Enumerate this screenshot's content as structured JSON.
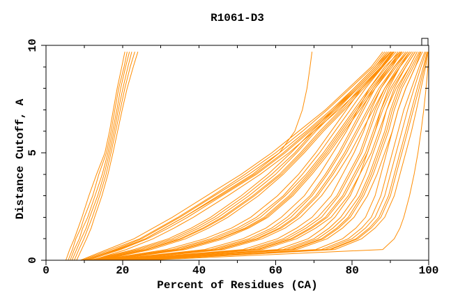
{
  "chart_data": {
    "type": "line",
    "title": "R1061-D3",
    "xlabel": "Percent of Residues (CA)",
    "ylabel": "Distance Cutoff, A",
    "xlim": [
      0,
      100
    ],
    "ylim": [
      0,
      10
    ],
    "grid": false,
    "legend": "none",
    "line_color": "#ff8c00",
    "frame_color": "#000000",
    "x_major_ticks": [
      0,
      20,
      40,
      60,
      80,
      100
    ],
    "x_minor_ticks": [
      10,
      30,
      50,
      70,
      90
    ],
    "y_major_ticks": [
      0,
      5,
      10
    ],
    "y_minor_ticks": [
      1,
      2,
      3,
      4,
      6,
      7,
      8,
      9
    ],
    "x_tick_labels": [
      "0",
      "20",
      "40",
      "60",
      "80",
      "100"
    ],
    "y_tick_labels": [
      "0",
      "5",
      "10"
    ],
    "cutoffs": [
      0,
      0.5,
      1,
      1.5,
      2,
      3,
      4,
      5,
      6,
      7,
      8,
      9,
      9.7
    ],
    "series": [
      [
        5.2,
        6.2,
        7.4,
        8.4,
        9.4,
        11.2,
        13.2,
        15.4,
        16.6,
        17.6,
        18.6,
        19.8,
        20.6
      ],
      [
        5.8,
        6.9,
        7.8,
        9.1,
        10.0,
        12.2,
        13.8,
        15.8,
        17.0,
        18.0,
        19.0,
        20.4,
        21.2
      ],
      [
        6.3,
        7.4,
        8.7,
        9.6,
        10.9,
        12.8,
        14.7,
        16.2,
        17.4,
        18.5,
        19.5,
        20.8,
        21.8
      ],
      [
        6.8,
        8.0,
        9.2,
        10.5,
        11.4,
        13.5,
        15.2,
        16.6,
        17.8,
        18.9,
        20.1,
        21.4,
        22.4
      ],
      [
        7.4,
        8.6,
        9.9,
        11.0,
        12.1,
        14.0,
        15.7,
        17.0,
        18.2,
        19.4,
        20.6,
        22.0,
        23.2
      ],
      [
        8.0,
        9.3,
        10.6,
        11.8,
        12.7,
        14.6,
        16.2,
        17.5,
        18.7,
        19.9,
        21.2,
        22.8,
        24.0
      ],
      [
        10,
        19,
        26,
        31,
        36,
        45,
        54,
        61,
        65,
        67,
        68.2,
        69.0,
        69.5
      ],
      [
        9,
        16,
        23,
        28,
        33,
        42,
        51,
        59,
        66,
        73,
        79,
        85,
        88
      ],
      [
        10,
        18,
        25,
        30,
        35,
        44,
        53,
        61,
        68,
        74.5,
        80.5,
        86,
        89
      ],
      [
        11,
        19.5,
        26.5,
        32,
        37,
        46,
        55,
        62.5,
        69,
        75.5,
        81.5,
        87,
        90
      ],
      [
        9.5,
        17,
        24.5,
        29.5,
        34.5,
        43.5,
        52,
        60,
        67,
        73.5,
        79.5,
        85.5,
        88.5
      ],
      [
        12,
        21,
        28,
        33.5,
        38.5,
        47.5,
        56,
        63.5,
        70,
        76.5,
        82.5,
        88,
        90.5
      ],
      [
        10.5,
        18.5,
        26,
        31,
        36,
        45.5,
        54.5,
        62,
        68.5,
        75,
        81,
        86.5,
        89.5
      ],
      [
        12,
        24,
        33,
        39,
        44,
        52,
        59,
        65,
        70,
        75.5,
        81,
        86.5,
        90
      ],
      [
        13,
        26,
        35,
        41,
        46,
        54,
        61,
        66.5,
        71.5,
        77,
        82,
        87.5,
        90.5
      ],
      [
        11.5,
        23,
        32,
        38,
        43,
        51,
        58,
        64,
        69.5,
        75,
        80.5,
        86,
        89.5
      ],
      [
        14,
        27.5,
        36.5,
        42.5,
        47.5,
        55.5,
        62,
        67.5,
        72.5,
        78,
        83,
        88,
        91
      ],
      [
        12.5,
        25,
        34,
        40,
        45,
        53,
        60,
        65.5,
        70.5,
        76,
        81.5,
        87,
        90.2
      ],
      [
        13.5,
        26.5,
        35.5,
        41.5,
        46.5,
        54.5,
        61.5,
        67,
        72,
        77.5,
        82.5,
        87.8,
        90.8
      ],
      [
        14,
        33,
        43,
        50,
        55,
        62,
        67,
        71.5,
        75.5,
        79.5,
        83.5,
        88,
        91.5
      ],
      [
        15,
        35,
        45,
        52,
        57,
        63.5,
        68.5,
        73,
        77,
        81,
        85,
        89.5,
        92.5
      ],
      [
        13.5,
        31.5,
        41.5,
        48.5,
        53.5,
        60.5,
        66,
        70.5,
        74.5,
        78.5,
        82.5,
        87.5,
        91
      ],
      [
        16,
        36.5,
        46.5,
        53,
        58,
        64.5,
        69.5,
        74,
        78,
        82,
        86,
        90.5,
        93
      ],
      [
        14.5,
        34,
        44,
        51,
        56,
        62.5,
        68,
        72.5,
        76.5,
        80.5,
        84.5,
        89,
        92
      ],
      [
        15.5,
        35.5,
        45.5,
        52.5,
        57.5,
        64,
        69,
        73.5,
        77.5,
        81.5,
        85.5,
        90,
        92.8
      ],
      [
        16,
        43,
        53,
        59,
        63,
        69,
        73,
        76.5,
        79.5,
        82.5,
        85.5,
        89.5,
        93
      ],
      [
        17,
        45,
        55,
        61,
        65,
        70.5,
        74.5,
        78,
        81,
        84,
        87,
        91,
        94
      ],
      [
        15.5,
        41.5,
        51.5,
        57.5,
        61.5,
        67.5,
        71.5,
        75,
        78.5,
        81.5,
        84.5,
        88.5,
        92.5
      ],
      [
        18,
        46.5,
        56.5,
        62.5,
        66.5,
        72,
        76,
        79.5,
        82.5,
        85.5,
        88.5,
        92.5,
        95
      ],
      [
        16.5,
        44,
        54,
        60,
        64,
        69.5,
        73.5,
        77,
        80,
        83,
        86,
        90,
        93.5
      ],
      [
        17.5,
        45.5,
        55.5,
        61.5,
        65.5,
        71,
        75,
        78.5,
        81.5,
        84.5,
        87.5,
        91.5,
        94.5
      ],
      [
        18,
        53,
        62,
        67,
        71,
        76,
        79,
        82,
        84,
        86,
        88.5,
        92,
        95
      ],
      [
        19,
        55,
        64,
        69,
        73,
        77.5,
        80.5,
        83.5,
        85.5,
        87.5,
        90,
        93.5,
        96
      ],
      [
        17.5,
        51.5,
        60.5,
        65.5,
        69.5,
        74.5,
        77.5,
        80.5,
        83,
        85,
        87.5,
        91,
        94.5
      ],
      [
        20,
        56.5,
        65.5,
        70.5,
        74.5,
        79,
        82,
        85,
        87,
        89,
        91.5,
        95,
        97
      ],
      [
        18.5,
        54,
        63,
        68,
        72,
        76.5,
        79.5,
        82.5,
        84.5,
        86.5,
        89,
        92.5,
        95.5
      ],
      [
        19.5,
        55.5,
        64.5,
        69.5,
        73.5,
        78,
        81,
        84,
        86,
        88,
        90.5,
        94,
        96.5
      ],
      [
        20,
        62,
        70,
        74,
        77,
        81,
        83.5,
        85.5,
        87.5,
        89,
        91,
        94,
        96.5
      ],
      [
        21,
        64,
        72,
        76,
        79,
        82.5,
        85,
        87,
        89,
        90.5,
        92.5,
        95.5,
        97.5
      ],
      [
        19.5,
        60.5,
        68.5,
        72.5,
        75.5,
        79.5,
        82,
        84,
        86,
        87.5,
        89.5,
        92.5,
        95.5
      ],
      [
        22,
        65.5,
        73.5,
        77.5,
        80.5,
        84,
        86.5,
        88.5,
        90.5,
        92,
        94,
        96.5,
        98
      ],
      [
        20.5,
        63,
        71,
        75,
        78,
        82,
        84.5,
        86.5,
        88.5,
        90,
        92,
        95,
        97
      ],
      [
        21.5,
        64.5,
        72.5,
        76.5,
        79.5,
        83,
        85.5,
        87.5,
        89.5,
        91,
        93,
        96,
        97.8
      ],
      [
        23,
        72,
        79,
        82.5,
        85,
        87.5,
        89,
        90.5,
        92,
        93.5,
        95.5,
        97.5,
        99
      ],
      [
        24,
        74,
        81,
        84.5,
        87,
        89.5,
        91,
        92.5,
        94,
        95.5,
        97,
        98.6,
        99.6
      ],
      [
        22.5,
        70.5,
        77.5,
        81,
        83.5,
        86,
        87.5,
        89,
        90.5,
        92,
        94,
        96.5,
        98.4
      ],
      [
        25,
        75.5,
        82.5,
        86,
        88.5,
        91,
        92.5,
        94,
        95.5,
        96.8,
        98,
        99.2,
        99.9
      ],
      [
        23.5,
        73,
        80,
        83.5,
        86,
        88.5,
        90,
        91.5,
        93,
        94.5,
        96.2,
        98,
        99.3
      ],
      [
        24.5,
        74.5,
        81.5,
        85,
        87.5,
        90,
        91.5,
        93,
        94.5,
        96,
        97.5,
        98.9,
        99.7
      ],
      [
        26,
        88,
        91,
        92.5,
        93.5,
        95,
        96.2,
        97.2,
        98,
        98.7,
        99.3,
        99.8,
        100
      ]
    ]
  }
}
